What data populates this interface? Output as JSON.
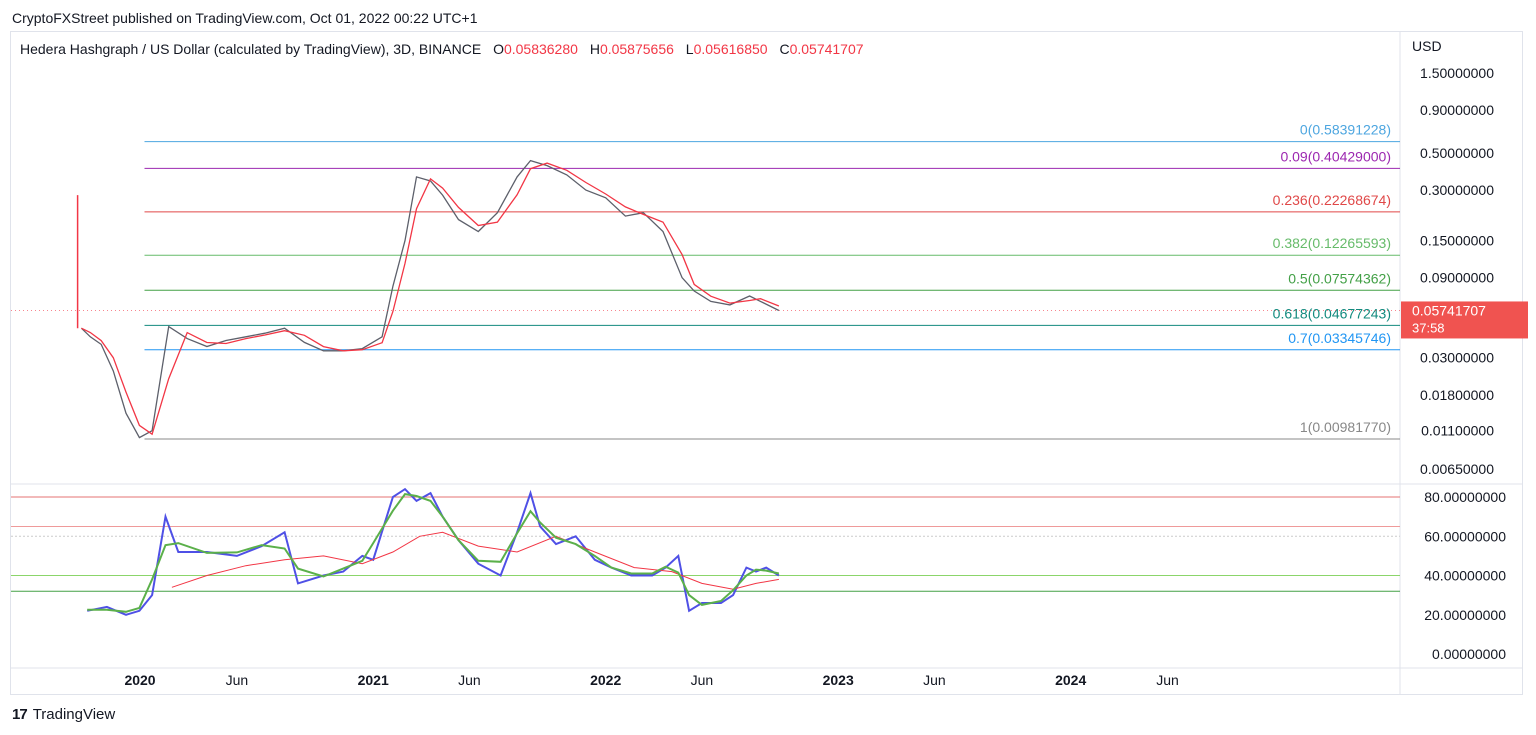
{
  "header": {
    "published": "CryptoFXStreet published on TradingView.com, Oct 01, 2022 00:22 UTC+1"
  },
  "legend": {
    "symbol": "Hedera Hashgraph / US Dollar (calculated by TradingView), 3D, BINANCE",
    "o_label": "O",
    "o_value": "0.05836280",
    "h_label": "H",
    "h_value": "0.05875656",
    "l_label": "L",
    "l_value": "0.05616850",
    "c_label": "C",
    "c_value": "0.05741707"
  },
  "footer": {
    "brand": "TradingView",
    "brand_mark": "17"
  },
  "colors": {
    "up": "#089981",
    "down": "#f23645",
    "ma": "#f23645",
    "rsi": "#4f50e6",
    "rsi_ma": "#5bb04a",
    "price_badge": "#f05350"
  },
  "chart_data": [
    {
      "type": "line",
      "title": "Hedera Hashgraph / US Dollar (calculated by TradingView), 3D, BINANCE",
      "y_unit": "USD",
      "y_scale": "log",
      "y_ticks": [
        "1.50000000",
        "0.90000000",
        "0.50000000",
        "0.30000000",
        "0.15000000",
        "0.09000000",
        "0.03000000",
        "0.01800000",
        "0.01100000",
        "0.00650000"
      ],
      "x_ticks": [
        "2020",
        "Jun",
        "2021",
        "Jun",
        "2022",
        "Jun",
        "2023",
        "Jun",
        "2024",
        "Jun"
      ],
      "x_ticks_bold": [
        "2020",
        "2021",
        "2022",
        "2023",
        "2024"
      ],
      "last_price": "0.05741707",
      "countdown": "37:58",
      "fib_levels": [
        {
          "label": "0(0.58391228)",
          "value": 0.58391228,
          "color": "#4da6e0"
        },
        {
          "label": "0.09(0.40429000)",
          "value": 0.40429,
          "color": "#9c27b0"
        },
        {
          "label": "0.236(0.22268674)",
          "value": 0.22268674,
          "color": "#e04848"
        },
        {
          "label": "0.382(0.12265593)",
          "value": 0.12265593,
          "color": "#66bb6a"
        },
        {
          "label": "0.5(0.07574362)",
          "value": 0.07574362,
          "color": "#43a047"
        },
        {
          "label": "0.618(0.04677243)",
          "value": 0.04677243,
          "color": "#138a7e"
        },
        {
          "label": "0.7(0.03345746)",
          "value": 0.03345746,
          "color": "#2196f3"
        },
        {
          "label": "1(0.00981770)",
          "value": 0.0098177,
          "color": "#888888"
        }
      ],
      "series": [
        {
          "kind": "price",
          "x": [
            "2019-10-01",
            "2019-10-15",
            "2019-11-01",
            "2019-11-20",
            "2019-12-10",
            "2019-12-31",
            "2020-01-20",
            "2020-02-15",
            "2020-03-15",
            "2020-04-15",
            "2020-05-15",
            "2020-06-15",
            "2020-07-15",
            "2020-08-15",
            "2020-09-15",
            "2020-10-15",
            "2020-11-15",
            "2020-12-15",
            "2021-01-15",
            "2021-02-01",
            "2021-02-20",
            "2021-03-10",
            "2021-04-01",
            "2021-04-20",
            "2021-05-15",
            "2021-06-15",
            "2021-07-15",
            "2021-08-15",
            "2021-09-05",
            "2021-10-01",
            "2021-11-01",
            "2021-12-01",
            "2022-01-01",
            "2022-02-01",
            "2022-03-01",
            "2022-04-01",
            "2022-05-01",
            "2022-05-20",
            "2022-06-15",
            "2022-07-15",
            "2022-08-15",
            "2022-09-01",
            "2022-09-30"
          ],
          "values": [
            0.045,
            0.04,
            0.036,
            0.025,
            0.014,
            0.01,
            0.011,
            0.046,
            0.039,
            0.035,
            0.038,
            0.04,
            0.042,
            0.045,
            0.037,
            0.033,
            0.033,
            0.034,
            0.04,
            0.08,
            0.15,
            0.36,
            0.34,
            0.28,
            0.2,
            0.17,
            0.22,
            0.36,
            0.45,
            0.42,
            0.37,
            0.3,
            0.27,
            0.21,
            0.22,
            0.17,
            0.09,
            0.075,
            0.065,
            0.062,
            0.07,
            0.065,
            0.0574
          ]
        },
        {
          "kind": "rsi",
          "x": [
            "2019-10-10",
            "2019-11-10",
            "2019-12-10",
            "2019-12-31",
            "2020-01-20",
            "2020-02-10",
            "2020-03-01",
            "2020-04-15",
            "2020-06-01",
            "2020-07-10",
            "2020-08-15",
            "2020-09-05",
            "2020-10-15",
            "2020-11-15",
            "2020-12-15",
            "2021-01-01",
            "2021-02-01",
            "2021-02-20",
            "2021-03-10",
            "2021-04-01",
            "2021-04-20",
            "2021-05-15",
            "2021-06-15",
            "2021-07-20",
            "2021-08-15",
            "2021-09-05",
            "2021-09-20",
            "2021-10-15",
            "2021-11-15",
            "2021-12-15",
            "2022-01-10",
            "2022-02-10",
            "2022-03-15",
            "2022-04-05",
            "2022-04-25",
            "2022-05-12",
            "2022-06-01",
            "2022-07-01",
            "2022-07-20",
            "2022-08-10",
            "2022-08-25",
            "2022-09-10",
            "2022-09-30"
          ],
          "values": [
            22,
            24,
            20,
            22,
            30,
            70,
            52,
            52,
            50,
            55,
            62,
            36,
            40,
            42,
            50,
            48,
            80,
            84,
            78,
            82,
            70,
            58,
            46,
            40,
            62,
            82,
            65,
            56,
            60,
            48,
            44,
            40,
            40,
            44,
            50,
            22,
            26,
            26,
            30,
            44,
            42,
            44,
            40
          ]
        },
        {
          "kind": "rsi_ma",
          "x": [
            "2020-02-20",
            "2020-04-15",
            "2020-06-15",
            "2020-08-15",
            "2020-10-15",
            "2020-12-15",
            "2021-02-01",
            "2021-03-15",
            "2021-04-20",
            "2021-06-15",
            "2021-08-15",
            "2021-10-15",
            "2021-12-15",
            "2022-02-15",
            "2022-04-15",
            "2022-06-01",
            "2022-07-20",
            "2022-08-25",
            "2022-09-30"
          ],
          "values": [
            34,
            40,
            45,
            48,
            50,
            46,
            52,
            60,
            62,
            55,
            52,
            60,
            52,
            44,
            42,
            36,
            33,
            36,
            38
          ]
        }
      ],
      "rsi_ticks": [
        "80.00000000",
        "60.00000000",
        "40.00000000",
        "20.00000000",
        "0.00000000"
      ],
      "rsi_levels": [
        {
          "value": 80,
          "color": "#e57373"
        },
        {
          "value": 65,
          "color": "#ef9a9a"
        },
        {
          "value": 60,
          "color": "#cccccc"
        },
        {
          "value": 40,
          "color": "#8bd56a"
        },
        {
          "value": 32,
          "color": "#43a047"
        }
      ]
    }
  ]
}
